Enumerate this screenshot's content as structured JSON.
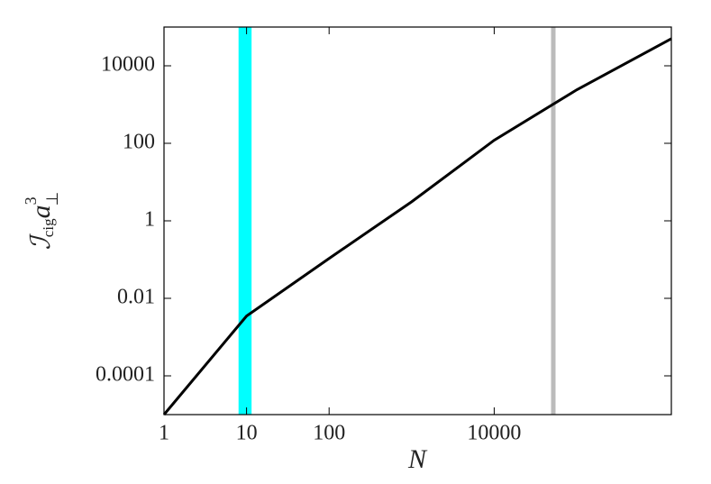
{
  "chart_data": {
    "type": "line",
    "log_x": true,
    "log_y": true,
    "x_label": "N",
    "y_label": {
      "symbol": "ℐ",
      "subscript": "cig",
      "variable": "a",
      "superscript": "3",
      "variable_subscript": "⊥"
    },
    "x": [
      1,
      10,
      100,
      1000,
      10000,
      100000,
      1400000
    ],
    "series": [
      {
        "color": "#000000",
        "values": [
          1e-05,
          0.0035,
          0.107,
          3.1,
          120,
          2400,
          50000
        ]
      }
    ],
    "xlim": [
      1,
      1400000
    ],
    "ylim": [
      1e-05,
      100000
    ],
    "xticks": [
      1,
      10,
      100,
      10000
    ],
    "yticks": [
      0.0001,
      0.01,
      1,
      100,
      10000
    ],
    "bands": [
      {
        "x0": 8,
        "x1": 11.5,
        "color": "#00ffff"
      }
    ],
    "vlines": [
      {
        "x": 52000,
        "color": "#bbbbbb"
      }
    ]
  }
}
